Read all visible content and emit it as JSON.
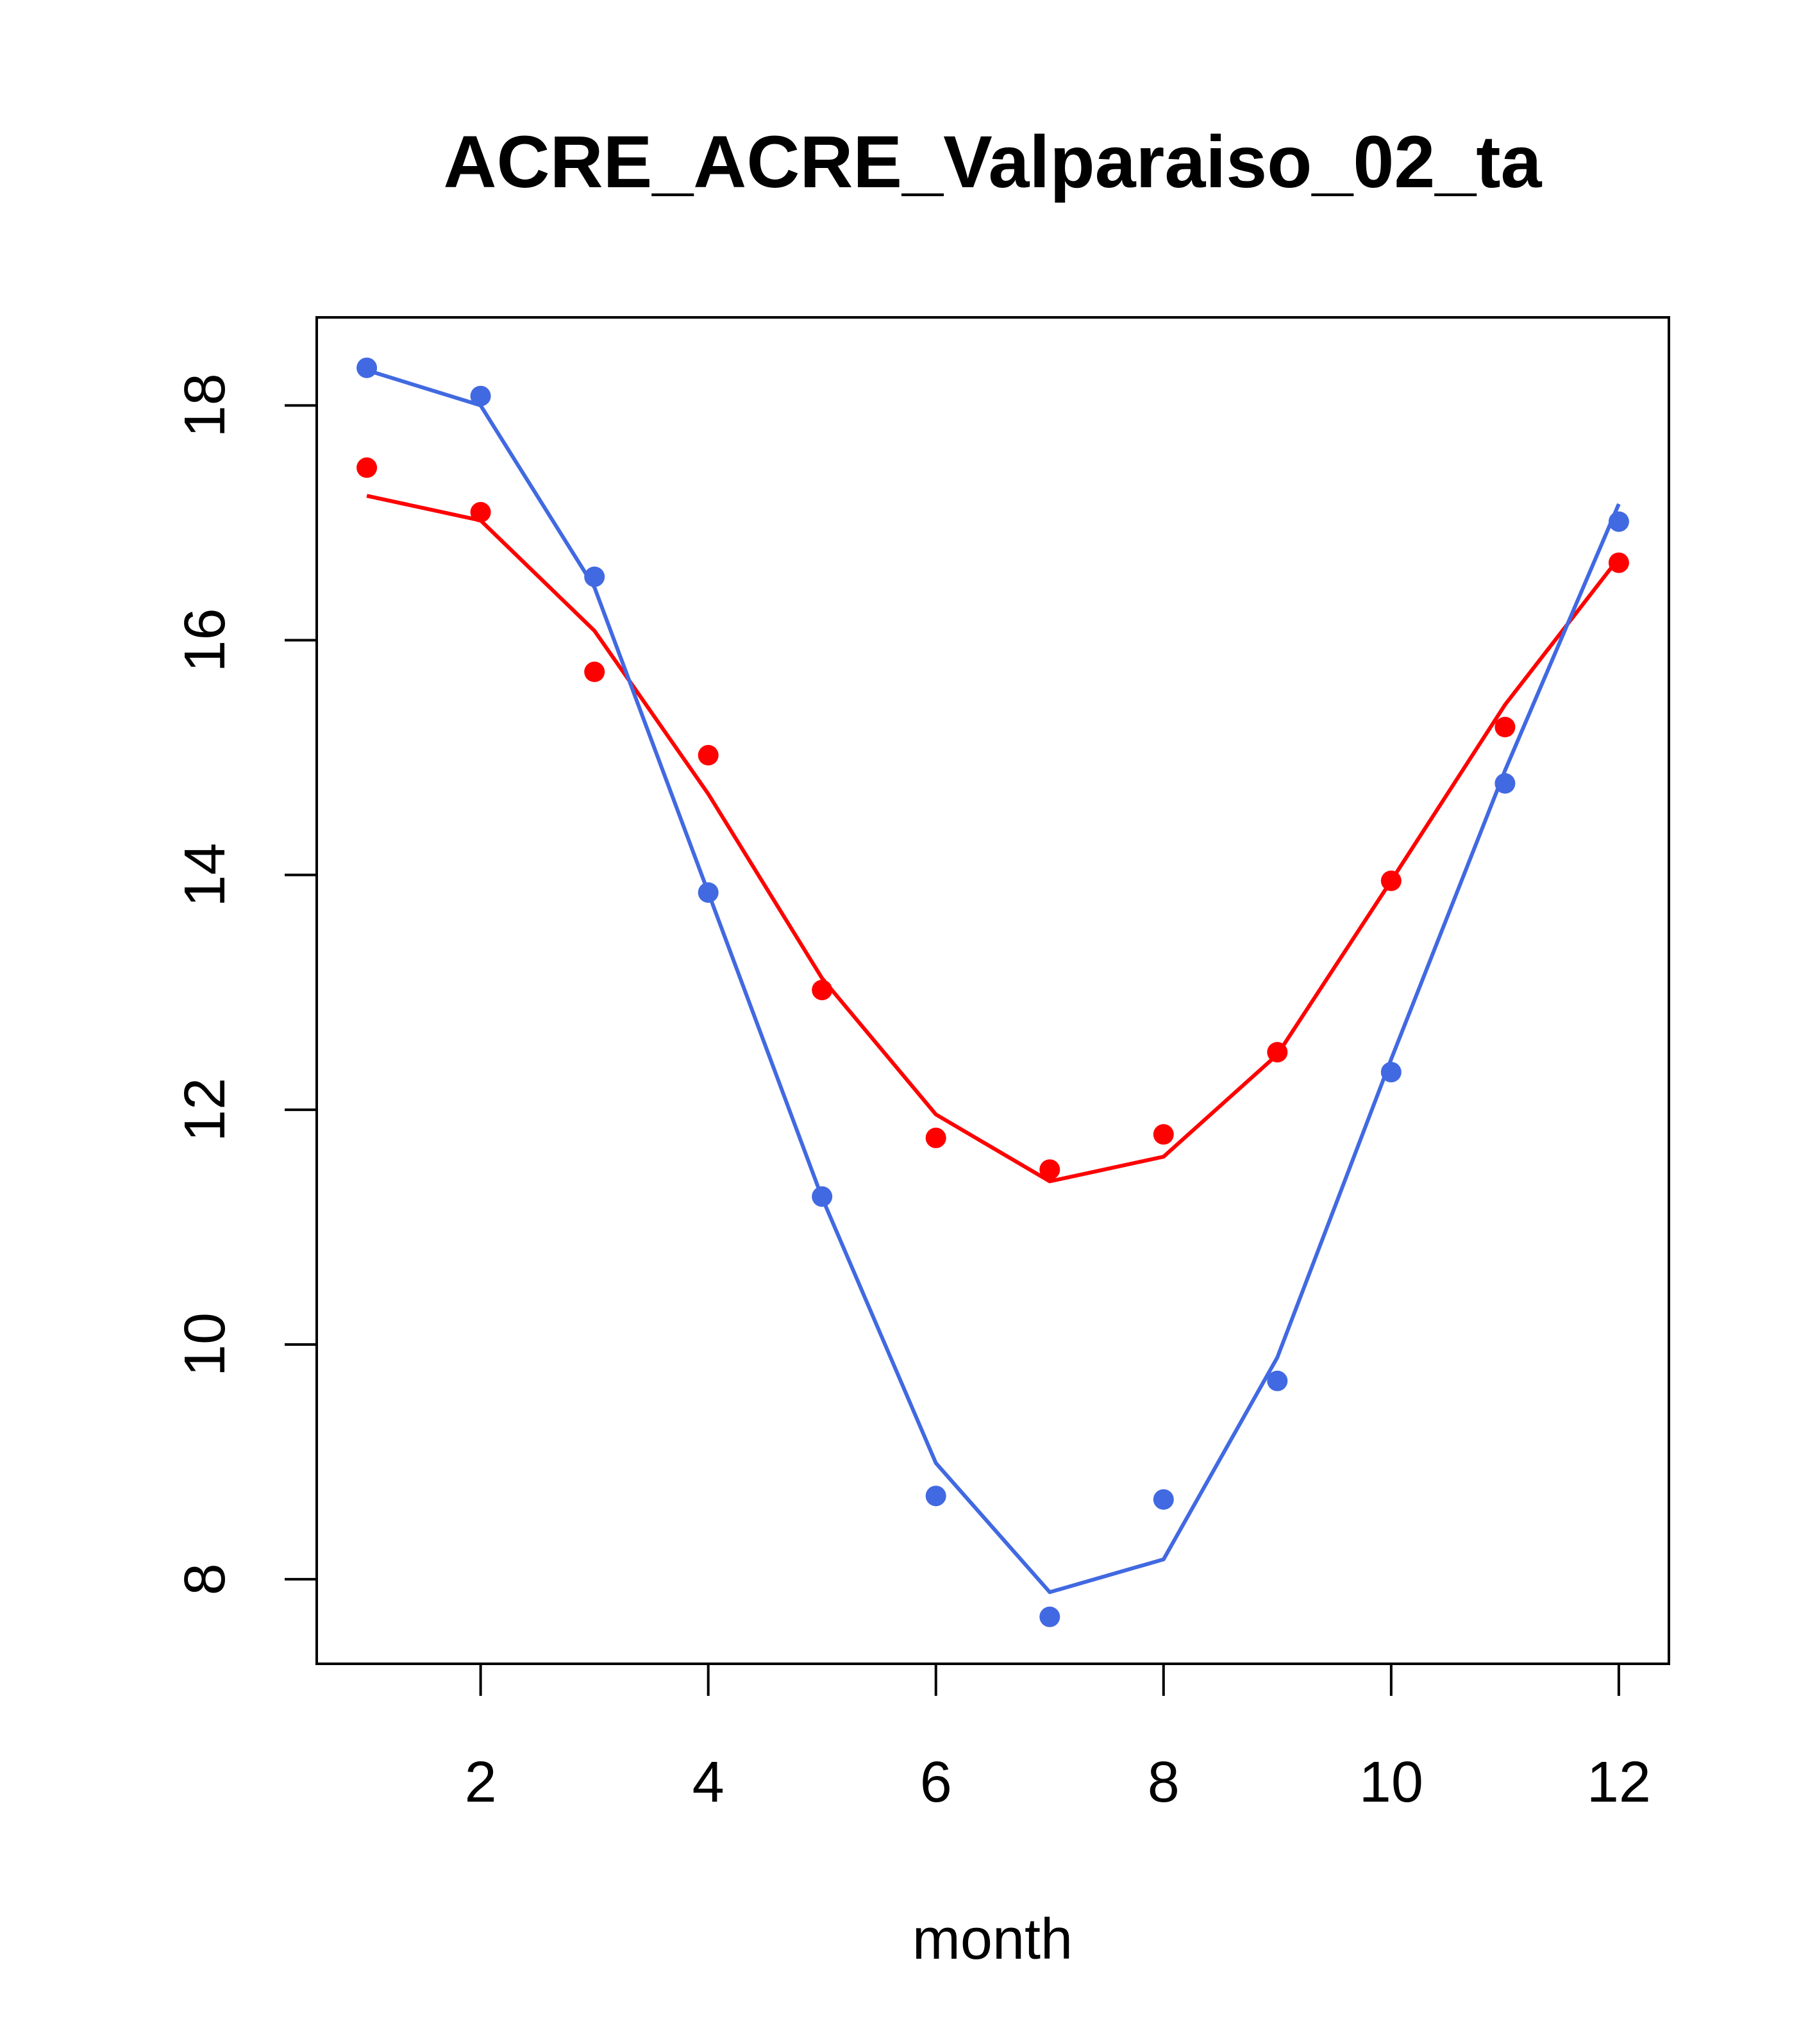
{
  "chart_data": {
    "type": "line",
    "title": "ACRE_ACRE_Valparaiso_02_ta",
    "xlabel": "month",
    "ylabel": "",
    "xlim": [
      0.56,
      12.44
    ],
    "ylim": [
      7.28,
      18.75
    ],
    "xticks": [
      2,
      4,
      6,
      8,
      10,
      12
    ],
    "yticks": [
      8,
      10,
      12,
      14,
      16,
      18
    ],
    "grid": false,
    "legend": "none",
    "x": [
      1,
      2,
      3,
      4,
      5,
      6,
      7,
      8,
      9,
      10,
      11,
      12
    ],
    "series": [
      {
        "color": "#ff0000",
        "points": [
          17.47,
          17.09,
          15.73,
          15.02,
          13.02,
          11.76,
          11.49,
          11.79,
          12.49,
          13.95,
          15.26,
          16.66
        ],
        "line": [
          17.23,
          17.02,
          16.08,
          14.69,
          13.12,
          11.96,
          11.39,
          11.6,
          12.47,
          13.95,
          15.45,
          16.7
        ]
      },
      {
        "color": "#4169e1",
        "points": [
          18.32,
          18.08,
          16.54,
          13.85,
          11.26,
          8.71,
          7.68,
          8.68,
          9.69,
          12.32,
          14.78,
          17.01
        ],
        "line": [
          18.3,
          18.0,
          16.45,
          13.85,
          11.25,
          8.99,
          7.89,
          8.17,
          9.89,
          12.43,
          14.89,
          17.16
        ]
      }
    ]
  }
}
